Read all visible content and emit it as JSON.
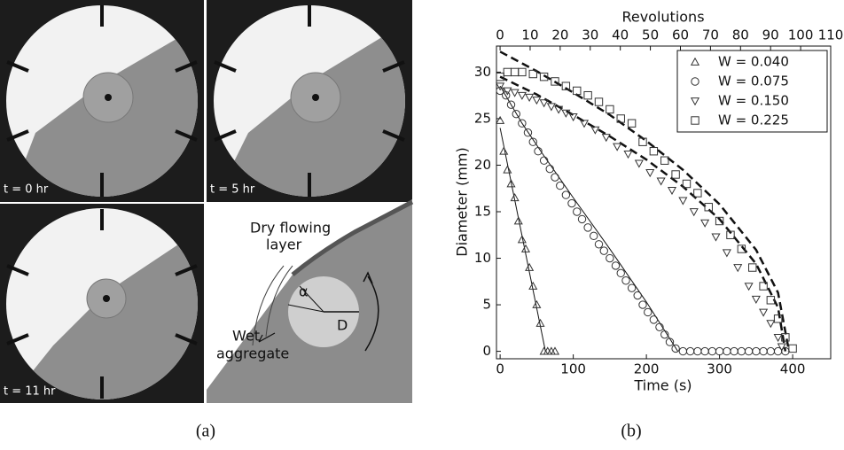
{
  "panel_a": {
    "frames": [
      {
        "label": "t = 0 hr"
      },
      {
        "label": "t = 5 hr"
      },
      {
        "label": "t = 11 hr"
      }
    ],
    "diagram": {
      "flow_label": [
        "Dry flowing",
        "layer"
      ],
      "wet_label": [
        "Wet",
        "aggregate"
      ],
      "angle_label": "α",
      "diameter_label": "D"
    }
  },
  "captions": {
    "a": "(a)",
    "b": "(b)"
  },
  "chart_data": {
    "type": "scatter",
    "xlabel": "Time (s)",
    "x2label": "Revolutions",
    "ylabel": "Diameter (mm)",
    "xlim": [
      -5,
      452
    ],
    "xticks": [
      0,
      100,
      200,
      300,
      400
    ],
    "x2lim": [
      -1.2,
      110
    ],
    "x2ticks": [
      0,
      10,
      20,
      30,
      40,
      50,
      60,
      70,
      80,
      90,
      100,
      110
    ],
    "ylim": [
      -0.8,
      32.8
    ],
    "yticks": [
      0,
      5,
      10,
      15,
      20,
      25,
      30
    ],
    "grid": false,
    "legend": "top-right",
    "series": [
      {
        "name": "W = 0.040",
        "marker": "triangle-up",
        "color": "#333333",
        "x": [
          0,
          5,
          10,
          15,
          20,
          25,
          30,
          35,
          40,
          45,
          50,
          55,
          60,
          65,
          70,
          75
        ],
        "values": [
          24.8,
          21.5,
          19.5,
          18,
          16.5,
          14,
          12,
          11,
          9,
          7,
          5,
          3,
          0,
          0,
          0,
          0
        ]
      },
      {
        "name": "W = 0.075",
        "marker": "circle",
        "color": "#333333",
        "x": [
          0,
          8,
          15,
          22,
          30,
          38,
          45,
          52,
          60,
          68,
          75,
          82,
          90,
          98,
          105,
          112,
          120,
          128,
          135,
          142,
          150,
          158,
          165,
          172,
          180,
          188,
          195,
          202,
          210,
          218,
          225,
          232,
          240,
          250,
          260,
          270,
          280,
          290,
          300,
          310,
          320,
          330,
          340,
          350,
          360,
          370,
          380,
          390
        ],
        "values": [
          28,
          27.5,
          26.5,
          25.5,
          24.5,
          23.5,
          22.5,
          21.5,
          20.5,
          19.6,
          18.7,
          17.8,
          16.8,
          15.9,
          15,
          14.2,
          13.3,
          12.4,
          11.5,
          10.8,
          10,
          9.2,
          8.4,
          7.6,
          6.8,
          6,
          5,
          4.2,
          3.4,
          2.6,
          1.8,
          1,
          0.3,
          0,
          0,
          0,
          0,
          0,
          0,
          0,
          0,
          0,
          0,
          0,
          0,
          0,
          0,
          0
        ]
      },
      {
        "name": "W = 0.150",
        "marker": "triangle-down",
        "color": "#333333",
        "x": [
          0,
          10,
          20,
          30,
          40,
          50,
          60,
          70,
          80,
          90,
          100,
          115,
          130,
          145,
          160,
          175,
          190,
          205,
          220,
          235,
          250,
          265,
          280,
          295,
          310,
          325,
          340,
          350,
          360,
          370,
          380,
          385
        ],
        "values": [
          28.5,
          28,
          27.8,
          27.5,
          27.3,
          27,
          26.7,
          26.3,
          26,
          25.6,
          25.2,
          24.5,
          23.8,
          23,
          22,
          21.2,
          20.2,
          19.2,
          18.3,
          17.3,
          16.2,
          15,
          13.8,
          12.3,
          10.6,
          9,
          7,
          5.6,
          4.2,
          3,
          1.5,
          0.5
        ]
      },
      {
        "name": "W = 0.225",
        "marker": "square",
        "color": "#333333",
        "x": [
          0,
          10,
          20,
          30,
          45,
          60,
          75,
          90,
          105,
          120,
          135,
          150,
          165,
          180,
          195,
          210,
          225,
          240,
          255,
          270,
          285,
          300,
          315,
          330,
          345,
          360,
          370,
          380,
          390,
          400
        ],
        "values": [
          29.5,
          30,
          30,
          30,
          29.8,
          29.5,
          29,
          28.5,
          28,
          27.5,
          26.8,
          26,
          25,
          24.5,
          22.5,
          21.5,
          20.5,
          19,
          18,
          17,
          15.5,
          14,
          12.5,
          11,
          9,
          7,
          5.5,
          3.5,
          1.5,
          0.3
        ]
      }
    ],
    "fit_lines": [
      {
        "style": "solid",
        "x": [
          0,
          62
        ],
        "values": [
          24,
          0
        ]
      },
      {
        "style": "solid",
        "x": [
          0,
          30,
          60,
          100,
          150,
          200,
          243
        ],
        "values": [
          28.5,
          24.5,
          21,
          16.5,
          11,
          5.3,
          0
        ]
      },
      {
        "style": "dashed",
        "x": [
          0,
          50,
          100,
          150,
          200,
          250,
          300,
          350,
          380,
          395
        ],
        "values": [
          32.2,
          30.1,
          27.8,
          25.4,
          22.6,
          19.5,
          15.8,
          10.9,
          6.3,
          0
        ]
      },
      {
        "style": "dashed",
        "x": [
          0,
          50,
          100,
          150,
          200,
          250,
          300,
          350,
          380,
          390
        ],
        "values": [
          29.5,
          27.6,
          25.4,
          23.1,
          20.6,
          17.7,
          14.2,
          9.4,
          4.7,
          0
        ]
      }
    ]
  }
}
